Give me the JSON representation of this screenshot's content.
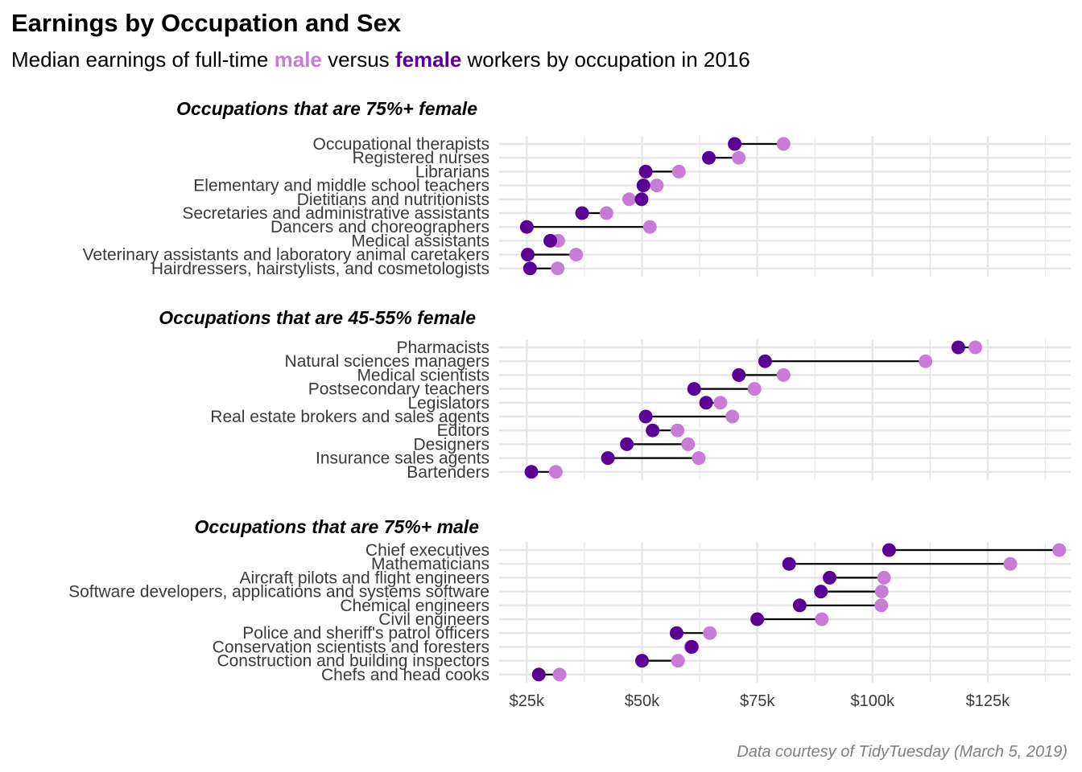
{
  "colors": {
    "male": "#c77cd6",
    "female": "#5b0094",
    "segment": "#000000",
    "grid": "#e6e6e6"
  },
  "title": "Earnings by Occupation and Sex",
  "subtitle": {
    "prefix": "Median earnings of full-time ",
    "male": "male",
    "middle": " versus ",
    "female": "female",
    "suffix": " workers by occupation in 2016"
  },
  "caption": "Data courtesy of TidyTuesday (March 5, 2019)",
  "chart_data": {
    "type": "dumbbell",
    "xlim": [
      19000,
      143000
    ],
    "x_ticks": [
      25000,
      50000,
      75000,
      100000,
      125000
    ],
    "x_tick_labels": [
      "$25k",
      "$50k",
      "$75k",
      "$100k",
      "$125k"
    ],
    "series": [
      {
        "name": "male"
      },
      {
        "name": "female"
      }
    ],
    "facets": [
      {
        "title": "Occupations that are 75%+ female",
        "rows": [
          {
            "occupation": "Occupational therapists",
            "male": 80700,
            "female": 70100
          },
          {
            "occupation": "Registered nurses",
            "male": 71000,
            "female": 64500
          },
          {
            "occupation": "Librarians",
            "male": 58000,
            "female": 50800
          },
          {
            "occupation": "Elementary and middle school teachers",
            "male": 53200,
            "female": 50300
          },
          {
            "occupation": "Dietitians and nutritionists",
            "male": 47200,
            "female": 49900
          },
          {
            "occupation": "Secretaries and administrative assistants",
            "male": 42300,
            "female": 37000
          },
          {
            "occupation": "Dancers and choreographers",
            "male": 51700,
            "female": 25000
          },
          {
            "occupation": "Medical assistants",
            "male": 31800,
            "female": 30100
          },
          {
            "occupation": "Veterinary assistants and laboratory animal caretakers",
            "male": 35700,
            "female": 25200
          },
          {
            "occupation": "Hairdressers, hairstylists, and cosmetologists",
            "male": 31700,
            "female": 25700
          }
        ]
      },
      {
        "title": "Occupations that are 45-55% female",
        "rows": [
          {
            "occupation": "Pharmacists",
            "male": 122300,
            "female": 118600
          },
          {
            "occupation": "Natural sciences managers",
            "male": 111500,
            "female": 76700
          },
          {
            "occupation": "Medical scientists",
            "male": 80700,
            "female": 71000
          },
          {
            "occupation": "Postsecondary teachers",
            "male": 74400,
            "female": 61300
          },
          {
            "occupation": "Legislators",
            "male": 67000,
            "female": 63900
          },
          {
            "occupation": "Real estate brokers and sales agents",
            "male": 69600,
            "female": 50800
          },
          {
            "occupation": "Editors",
            "male": 57700,
            "female": 52300
          },
          {
            "occupation": "Designers",
            "male": 60000,
            "female": 46700
          },
          {
            "occupation": "Insurance sales agents",
            "male": 62300,
            "female": 42600
          },
          {
            "occupation": "Bartenders",
            "male": 31300,
            "female": 26000
          }
        ]
      },
      {
        "title": "Occupations that are 75%+ male",
        "rows": [
          {
            "occupation": "Chief executives",
            "male": 140500,
            "female": 103600
          },
          {
            "occupation": "Mathematicians",
            "male": 129900,
            "female": 81900
          },
          {
            "occupation": "Aircraft pilots and flight engineers",
            "male": 102500,
            "female": 90700
          },
          {
            "occupation": "Software developers, applications and systems software",
            "male": 102000,
            "female": 88800
          },
          {
            "occupation": "Chemical engineers",
            "male": 101900,
            "female": 84200
          },
          {
            "occupation": "Civil engineers",
            "male": 89000,
            "female": 75000
          },
          {
            "occupation": "Police and sheriff's patrol officers",
            "male": 64700,
            "female": 57500
          },
          {
            "occupation": "Conservation scientists and foresters",
            "male": 60600,
            "female": 60800
          },
          {
            "occupation": "Construction and building inspectors",
            "male": 57800,
            "female": 50000
          },
          {
            "occupation": "Chefs and head cooks",
            "male": 32100,
            "female": 27600
          }
        ]
      }
    ]
  }
}
